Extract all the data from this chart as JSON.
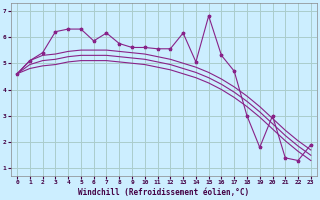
{
  "xlabel": "Windchill (Refroidissement éolien,°C)",
  "bg_color": "#cceeff",
  "line_color": "#882288",
  "grid_color": "#aacccc",
  "x_ticks": [
    0,
    1,
    2,
    3,
    4,
    5,
    6,
    7,
    8,
    9,
    10,
    11,
    12,
    13,
    14,
    15,
    16,
    17,
    18,
    19,
    20,
    21,
    22,
    23
  ],
  "y_ticks": [
    1,
    2,
    3,
    4,
    5,
    6,
    7
  ],
  "ylim": [
    0.7,
    7.3
  ],
  "xlim": [
    -0.5,
    23.5
  ],
  "line1_x": [
    0,
    1,
    2,
    3,
    4,
    5,
    6,
    7,
    8,
    9,
    10,
    11,
    12,
    13,
    14,
    15,
    16,
    17,
    18,
    19,
    20,
    21,
    22,
    23
  ],
  "line1_y": [
    4.6,
    5.1,
    5.4,
    6.2,
    6.3,
    6.3,
    5.85,
    6.15,
    5.75,
    5.6,
    5.6,
    5.55,
    5.55,
    6.15,
    5.05,
    6.8,
    5.3,
    4.7,
    3.0,
    1.8,
    3.0,
    1.4,
    1.3,
    1.9
  ],
  "line2_x": [
    0,
    1,
    2,
    3,
    4,
    5,
    6,
    7,
    8,
    9,
    10,
    11,
    12,
    13,
    14,
    15,
    16,
    17,
    18,
    19,
    20,
    21,
    22,
    23
  ],
  "line2_y": [
    4.6,
    5.1,
    5.3,
    5.35,
    5.45,
    5.5,
    5.5,
    5.5,
    5.45,
    5.4,
    5.35,
    5.25,
    5.15,
    5.0,
    4.85,
    4.65,
    4.4,
    4.1,
    3.75,
    3.35,
    2.9,
    2.45,
    2.05,
    1.7
  ],
  "line3_x": [
    0,
    1,
    2,
    3,
    4,
    5,
    6,
    7,
    8,
    9,
    10,
    11,
    12,
    13,
    14,
    15,
    16,
    17,
    18,
    19,
    20,
    21,
    22,
    23
  ],
  "line3_y": [
    4.6,
    4.95,
    5.1,
    5.15,
    5.25,
    5.3,
    5.3,
    5.3,
    5.25,
    5.2,
    5.15,
    5.05,
    4.95,
    4.8,
    4.65,
    4.45,
    4.2,
    3.9,
    3.55,
    3.15,
    2.7,
    2.25,
    1.85,
    1.5
  ],
  "line4_x": [
    0,
    1,
    2,
    3,
    4,
    5,
    6,
    7,
    8,
    9,
    10,
    11,
    12,
    13,
    14,
    15,
    16,
    17,
    18,
    19,
    20,
    21,
    22,
    23
  ],
  "line4_y": [
    4.6,
    4.8,
    4.9,
    4.95,
    5.05,
    5.1,
    5.1,
    5.1,
    5.05,
    5.0,
    4.95,
    4.85,
    4.75,
    4.6,
    4.45,
    4.25,
    4.0,
    3.7,
    3.35,
    2.95,
    2.5,
    2.05,
    1.65,
    1.3
  ]
}
